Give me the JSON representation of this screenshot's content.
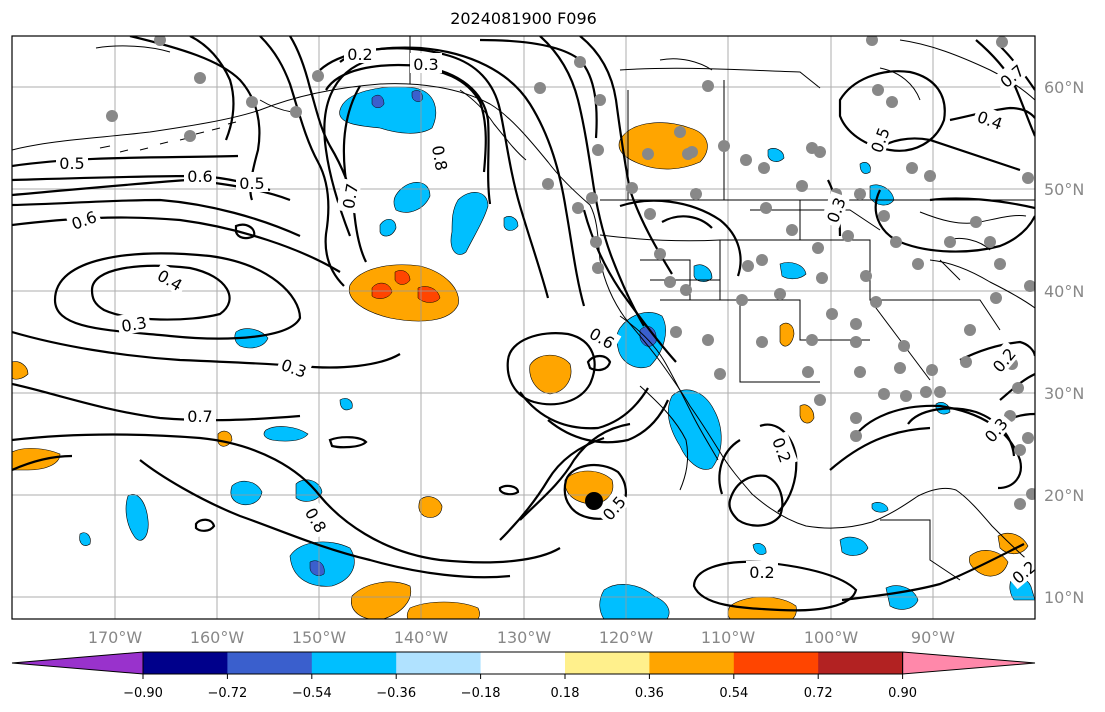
{
  "title": "2024081900 F096",
  "map": {
    "lon_labels": [
      "170°W",
      "160°W",
      "150°W",
      "140°W",
      "130°W",
      "120°W",
      "110°W",
      "100°W",
      "90°W"
    ],
    "lat_labels": [
      "60°N",
      "50°N",
      "40°N",
      "30°N",
      "20°N",
      "10°N"
    ],
    "contour_labels": [
      "0.2",
      "0.3",
      "0.8",
      "0.7",
      "0.6",
      "0.5",
      "0.6",
      "0.5",
      "0.4",
      "0.3",
      "0.3",
      "0.7",
      "0.8",
      "0.6",
      "0.5",
      "0.2",
      "0.2",
      "0.5",
      "0.4",
      "0.3",
      "0.3",
      "0.2",
      "0.7",
      "0.2"
    ],
    "marker": "storm-center-dot"
  },
  "colorbar": {
    "tick_labels": [
      "−0.90",
      "−0.72",
      "−0.54",
      "−0.36",
      "−0.18",
      "0.18",
      "0.36",
      "0.54",
      "0.72",
      "0.90"
    ],
    "colors": [
      "#9932cc",
      "#00008b",
      "#3a5fcd",
      "#00bfff",
      "#b0e2ff",
      "#ffffff",
      "#fff08c",
      "#ffa500",
      "#ff4500",
      "#b22222",
      "#ff88aa"
    ]
  }
}
